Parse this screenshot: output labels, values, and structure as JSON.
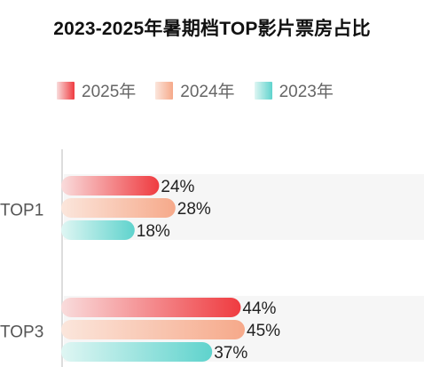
{
  "title": "2023-2025年暑期档TOP影片票房占比",
  "legend": [
    {
      "name": "2025年",
      "color_start": "#f9dcdc",
      "color_end": "#ef3b40"
    },
    {
      "name": "2024年",
      "color_start": "#fbe6dc",
      "color_end": "#f6a98a"
    },
    {
      "name": "2023年",
      "color_start": "#dff6f3",
      "color_end": "#5fd3cd"
    }
  ],
  "chart_data": {
    "type": "bar",
    "orientation": "horizontal",
    "categories": [
      "TOP1",
      "TOP3"
    ],
    "series": [
      {
        "name": "2025年",
        "values": [
          24,
          44
        ],
        "color": "#ef3b40"
      },
      {
        "name": "2024年",
        "values": [
          28,
          45
        ],
        "color": "#f6a98a"
      },
      {
        "name": "2023年",
        "values": [
          18,
          37
        ],
        "color": "#5fd3cd"
      }
    ],
    "value_labels": [
      [
        "24%",
        "28%",
        "18%"
      ],
      [
        "44%",
        "45%",
        "37%"
      ]
    ],
    "xlim": [
      0,
      100
    ],
    "unit": "%"
  }
}
